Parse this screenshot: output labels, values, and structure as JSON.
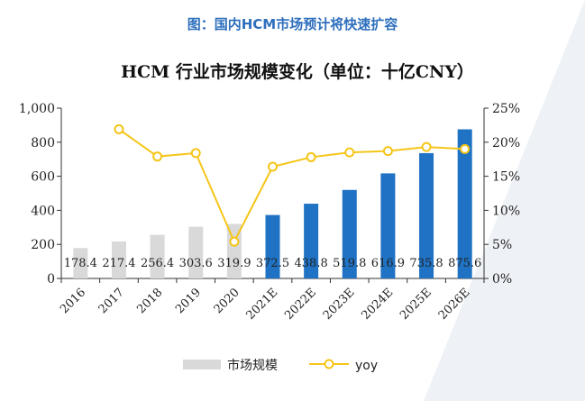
{
  "caption": "图：国内HCM市场预计将快速扩容",
  "chart_data": {
    "type": "bar",
    "title": "HCM 行业市场规模变化（单位：十亿CNY）",
    "categories": [
      "2016",
      "2017",
      "2018",
      "2019",
      "2020",
      "2021E",
      "2022E",
      "2023E",
      "2024E",
      "2025E",
      "2026E"
    ],
    "series": [
      {
        "name": "市场规模",
        "type": "bar",
        "axis": "left",
        "values": [
          178.4,
          217.4,
          256.4,
          303.6,
          319.9,
          372.5,
          438.8,
          519.8,
          616.9,
          735.8,
          875.6
        ],
        "data_labels": [
          "178.4",
          "217.4",
          "256.4",
          "303.6",
          "319.9",
          "372.5",
          "438.8",
          "519.8",
          "616.9",
          "735.8",
          "875.6"
        ]
      },
      {
        "name": "yoy",
        "type": "line",
        "axis": "right",
        "values": [
          null,
          21.9,
          17.9,
          18.4,
          5.4,
          16.4,
          17.8,
          18.5,
          18.7,
          19.3,
          19.0
        ]
      }
    ],
    "y_left": {
      "min": 0,
      "max": 1000,
      "ticks": [
        0,
        200,
        400,
        600,
        800,
        1000
      ],
      "tick_labels": [
        "0",
        "200",
        "400",
        "600",
        "800",
        "1,000"
      ]
    },
    "y_right": {
      "min": 0,
      "max": 25,
      "ticks": [
        0,
        5,
        10,
        15,
        20,
        25
      ],
      "tick_labels": [
        "0%",
        "5%",
        "10%",
        "15%",
        "20%",
        "25%"
      ]
    },
    "colors": {
      "actual_bar": "#d9d9d9",
      "forecast_bar": "#1f72c4",
      "line": "#f5c518",
      "marker_fill": "#ffffff"
    },
    "legend": {
      "position": "bottom",
      "items": [
        "市场规模",
        "yoy"
      ]
    }
  }
}
